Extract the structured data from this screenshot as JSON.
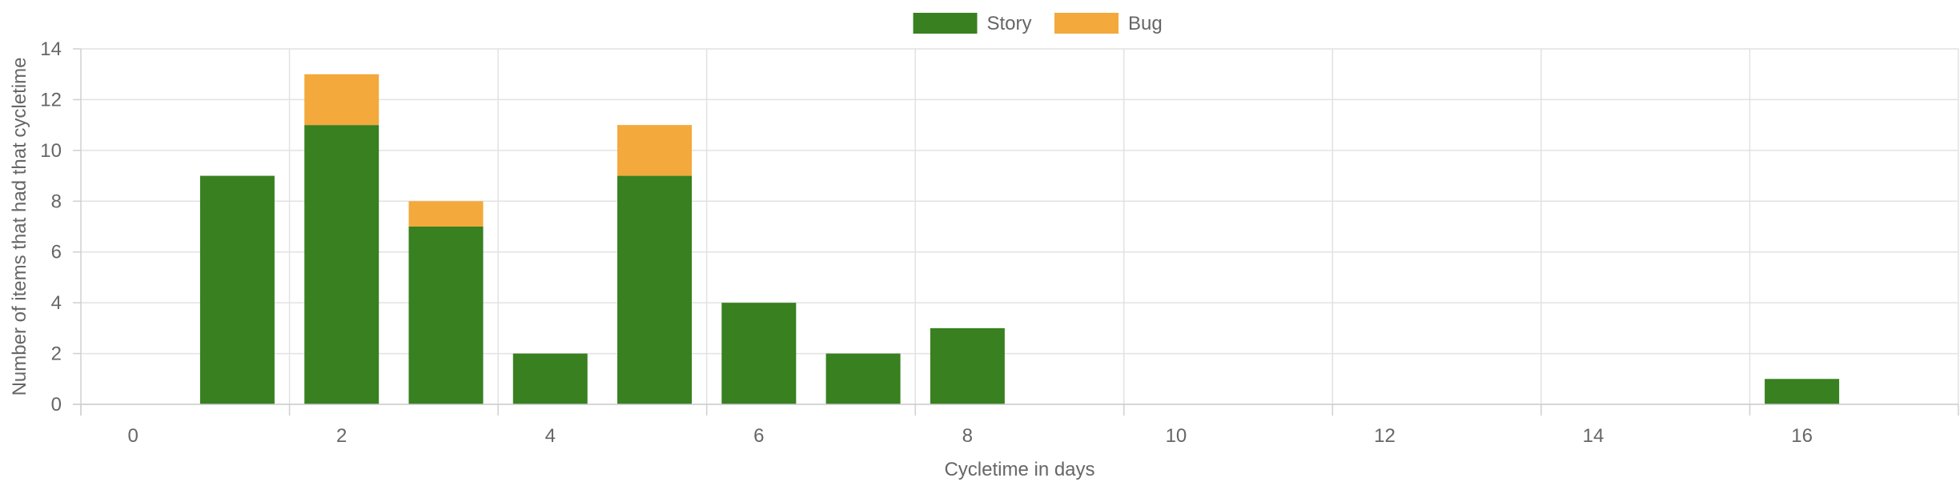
{
  "chart_data": {
    "type": "bar",
    "stacked": true,
    "xlabel": "Cycletime in days",
    "ylabel": "Number of items that had that cycletime",
    "x": [
      0,
      1,
      2,
      3,
      4,
      5,
      6,
      7,
      8,
      9,
      10,
      11,
      12,
      13,
      14,
      15,
      16,
      17
    ],
    "x_tick_labels": [
      "0",
      "2",
      "4",
      "6",
      "8",
      "10",
      "12",
      "14",
      "16"
    ],
    "y_ticks": [
      0,
      2,
      4,
      6,
      8,
      10,
      12,
      14
    ],
    "ylim": [
      0,
      14
    ],
    "grid": true,
    "legend_position": "top-center",
    "series": [
      {
        "name": "Story",
        "color": "#388020",
        "values": [
          0,
          9,
          11,
          7,
          2,
          9,
          4,
          2,
          3,
          0,
          0,
          0,
          0,
          0,
          0,
          0,
          1,
          0
        ]
      },
      {
        "name": "Bug",
        "color": "#f3a93c",
        "values": [
          0,
          0,
          2,
          1,
          0,
          2,
          0,
          0,
          0,
          0,
          0,
          0,
          0,
          0,
          0,
          0,
          0,
          0
        ]
      }
    ]
  }
}
